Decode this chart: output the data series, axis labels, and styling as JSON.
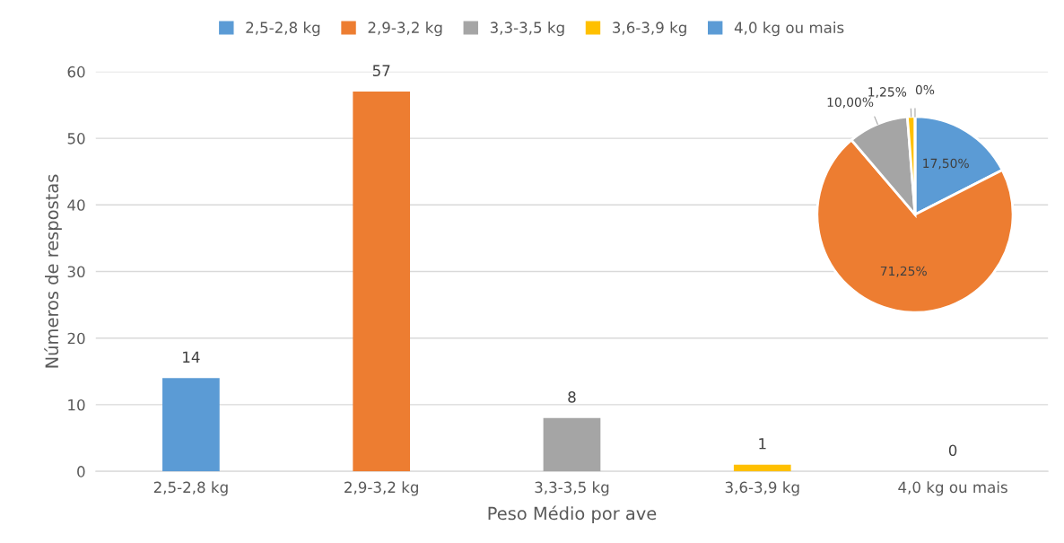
{
  "chart_data": [
    {
      "type": "bar",
      "categories": [
        "2,5-2,8 kg",
        "2,9-3,2 kg",
        "3,3-3,5 kg",
        "3,6-3,9 kg",
        "4,0 kg ou mais"
      ],
      "values": [
        14,
        57,
        8,
        1,
        0
      ],
      "colors": [
        "#5b9bd5",
        "#ed7d31",
        "#a5a5a5",
        "#ffc000",
        "#5b9bd5"
      ],
      "xlabel": "Peso Médio por ave",
      "ylabel": "Números de respostas",
      "ylim": [
        0,
        60
      ],
      "yticks": [
        0,
        10,
        20,
        30,
        40,
        50,
        60
      ],
      "grid": "y",
      "data_labels": true
    },
    {
      "type": "pie",
      "categories": [
        "2,5-2,8 kg",
        "2,9-3,2 kg",
        "3,3-3,5 kg",
        "3,6-3,9 kg",
        "4,0 kg ou mais"
      ],
      "values": [
        17.5,
        71.25,
        10,
        1.25,
        0
      ],
      "colors": [
        "#5b9bd5",
        "#ed7d31",
        "#a5a5a5",
        "#ffc000",
        "#5b9bd5"
      ],
      "value_labels": [
        "17,50%",
        "71,25%",
        "10,00%",
        "1,25%",
        "0%"
      ],
      "legend": "top"
    }
  ]
}
